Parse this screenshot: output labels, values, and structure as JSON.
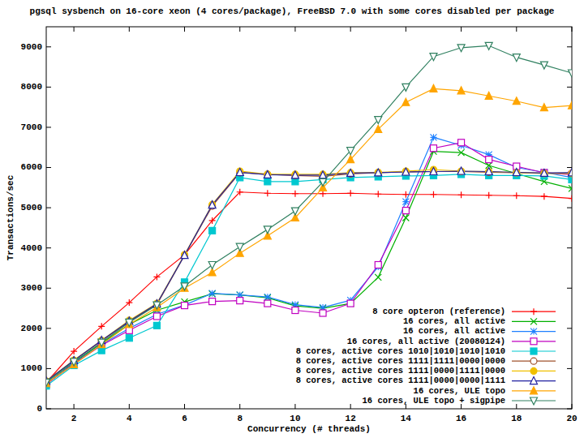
{
  "chart_data": {
    "type": "line",
    "title": "pgsql sysbench on 16-core xeon (4 cores/package), FreeBSD 7.0 with some cores disabled per package",
    "x_label": "Concurrency (# threads)",
    "y_label": "Transactions/sec",
    "x": [
      1,
      2,
      3,
      4,
      5,
      6,
      7,
      8,
      9,
      10,
      11,
      12,
      13,
      14,
      15,
      16,
      17,
      18,
      19,
      20
    ],
    "xlim": [
      1,
      20
    ],
    "xticks": [
      2,
      4,
      6,
      8,
      10,
      12,
      14,
      16,
      18,
      20
    ],
    "ylim": [
      0,
      9500
    ],
    "yticks": [
      0,
      1000,
      2000,
      3000,
      4000,
      5000,
      6000,
      7000,
      8000,
      9000
    ],
    "grid": false,
    "legend": "lower right",
    "series": [
      {
        "name": "8 core opteron (reference)",
        "color": "#ff0000",
        "marker": "plus",
        "values": [
          650,
          1430,
          2050,
          2640,
          3280,
          3830,
          4680,
          5390,
          5360,
          5350,
          5350,
          5360,
          5340,
          5330,
          5330,
          5320,
          5310,
          5300,
          5280,
          5230
        ]
      },
      {
        "name": "16 cores, all active",
        "color": "#00b000",
        "marker": "cross",
        "values": [
          620,
          1150,
          1630,
          2100,
          2450,
          2660,
          2860,
          2830,
          2760,
          2560,
          2500,
          2620,
          3270,
          4750,
          6400,
          6370,
          6050,
          5850,
          5650,
          5480
        ]
      },
      {
        "name": "16 cores, all active",
        "color": "#1e80ff",
        "marker": "star",
        "values": [
          620,
          1130,
          1600,
          2000,
          2350,
          2580,
          2870,
          2830,
          2780,
          2590,
          2520,
          2700,
          3530,
          5150,
          6750,
          6550,
          6320,
          6000,
          5880,
          5750
        ]
      },
      {
        "name": "16 cores, all active (20080124)",
        "color": "#c000c0",
        "marker": "square-open",
        "values": [
          610,
          1120,
          1580,
          1950,
          2300,
          2570,
          2670,
          2690,
          2620,
          2450,
          2380,
          2620,
          3580,
          4930,
          6480,
          6620,
          6200,
          6030,
          5870,
          5820
        ]
      },
      {
        "name": "8 cores, active cores 1010|1010|1010|1010",
        "color": "#00c8d0",
        "marker": "square-filled",
        "values": [
          570,
          1080,
          1450,
          1760,
          2070,
          3150,
          4430,
          5750,
          5650,
          5650,
          5700,
          5750,
          5770,
          5790,
          5800,
          5830,
          5800,
          5800,
          5790,
          5700
        ]
      },
      {
        "name": "8 cores, active cores 1111|1111|0000|0000",
        "color": "#a0522d",
        "marker": "circle-open",
        "values": [
          680,
          1200,
          1690,
          2170,
          2590,
          3820,
          5040,
          5870,
          5830,
          5800,
          5780,
          5840,
          5870,
          5890,
          5900,
          5900,
          5880,
          5870,
          5860,
          5860
        ]
      },
      {
        "name": "8 cores, active cores 1111|0000|1111|0000",
        "color": "#f0c000",
        "marker": "circle-filled",
        "values": [
          690,
          1210,
          1700,
          2200,
          2620,
          3830,
          5080,
          5910,
          5830,
          5830,
          5830,
          5870,
          5880,
          5910,
          5950,
          5910,
          5900,
          5870,
          5850,
          5850
        ]
      },
      {
        "name": "8 cores, active cores 1111|0000|0000|1111",
        "color": "#2020a0",
        "marker": "triangle-open",
        "values": [
          690,
          1200,
          1700,
          2180,
          2610,
          3820,
          5070,
          5880,
          5820,
          5810,
          5810,
          5860,
          5870,
          5890,
          5900,
          5910,
          5900,
          5880,
          5860,
          5870
        ]
      },
      {
        "name": "16 cores, ULE topo",
        "color": "#ffa500",
        "marker": "triangle-filled",
        "values": [
          630,
          1100,
          1600,
          2100,
          2520,
          3000,
          3390,
          3870,
          4300,
          4750,
          5500,
          6200,
          6950,
          7620,
          7960,
          7910,
          7780,
          7650,
          7490,
          7540
        ]
      },
      {
        "name": "16 cores, ULE topo + sigpipe",
        "color": "#308060",
        "marker": "triangle-down-open",
        "values": [
          660,
          1170,
          1650,
          2150,
          2580,
          3050,
          3580,
          4030,
          4460,
          4920,
          5640,
          6420,
          7190,
          8000,
          8760,
          8980,
          9030,
          8740,
          8550,
          8350
        ]
      }
    ]
  }
}
